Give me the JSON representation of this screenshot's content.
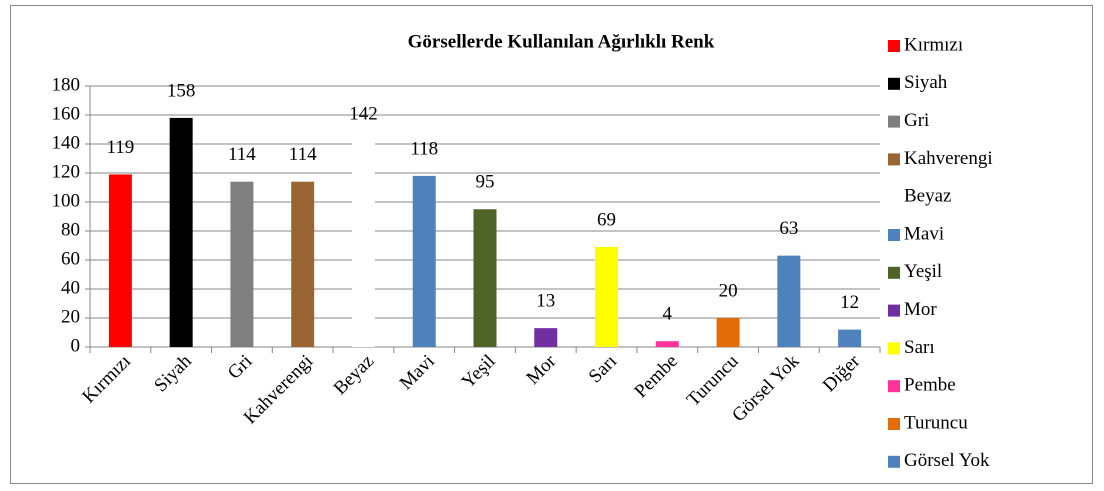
{
  "chart_data": {
    "type": "bar",
    "title": "Görsellerde Kullanılan Ağırlıklı Renk",
    "categories": [
      "Kırmızı",
      "Siyah",
      "Gri",
      "Kahverengi",
      "Beyaz",
      "Mavi",
      "Yeşil",
      "Mor",
      "Sarı",
      "Pembe",
      "Turuncu",
      "Görsel Yok",
      "Diğer"
    ],
    "values": [
      119,
      158,
      114,
      114,
      142,
      118,
      95,
      13,
      69,
      4,
      20,
      63,
      12
    ],
    "colors": [
      "#ff0000",
      "#000000",
      "#808080",
      "#996633",
      "#ffffff",
      "#4f81bd",
      "#4f6228",
      "#7030a0",
      "#ffff00",
      "#ff3399",
      "#e36c09",
      "#4f81bd",
      "#4f81bd"
    ],
    "ylim": [
      0,
      180
    ],
    "yticks": [
      0,
      20,
      40,
      60,
      80,
      100,
      120,
      140,
      160,
      180
    ],
    "grid": true,
    "legend": "right"
  }
}
